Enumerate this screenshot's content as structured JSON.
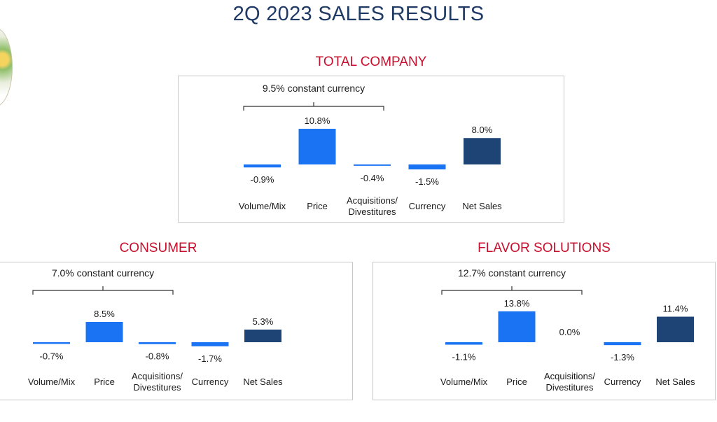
{
  "page": {
    "title": "2Q 2023 SALES RESULTS"
  },
  "colors": {
    "bar": "#1a73f2",
    "net_sales": "#1e4475",
    "title": "#1f3a64",
    "section": "#c8102e",
    "text": "#1a1a1a"
  },
  "chart_data": [
    {
      "type": "bar",
      "title": "TOTAL COMPANY",
      "bracket_label": "9.5% constant currency",
      "categories": [
        "Volume/Mix",
        "Price",
        "Acquisitions/\nDivestitures",
        "Currency",
        "Net Sales"
      ],
      "values": [
        -0.9,
        10.8,
        -0.4,
        -1.5,
        8.0
      ],
      "value_labels": [
        "-0.9%",
        "10.8%",
        "-0.4%",
        "-1.5%",
        "8.0%"
      ]
    },
    {
      "type": "bar",
      "title": "CONSUMER",
      "bracket_label": "7.0% constant currency",
      "categories": [
        "Volume/Mix",
        "Price",
        "Acquisitions/\nDivestitures",
        "Currency",
        "Net Sales"
      ],
      "values": [
        -0.7,
        8.5,
        -0.8,
        -1.7,
        5.3
      ],
      "value_labels": [
        "-0.7%",
        "8.5%",
        "-0.8%",
        "-1.7%",
        "5.3%"
      ]
    },
    {
      "type": "bar",
      "title": "FLAVOR SOLUTIONS",
      "bracket_label": "12.7% constant currency",
      "categories": [
        "Volume/Mix",
        "Price",
        "Acquisitions/\nDivestitures",
        "Currency",
        "Net Sales"
      ],
      "values": [
        -1.1,
        13.8,
        0.0,
        -1.3,
        11.4
      ],
      "value_labels": [
        "-1.1%",
        "13.8%",
        "0.0%",
        "-1.3%",
        "11.4%"
      ]
    }
  ]
}
